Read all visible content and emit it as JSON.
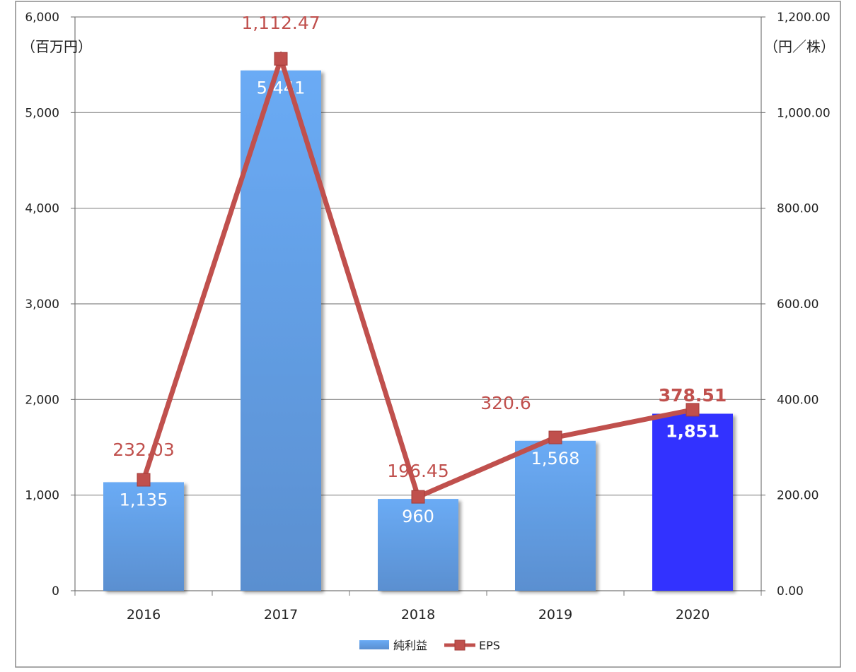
{
  "chart_data": {
    "type": "bar",
    "categories": [
      "2016",
      "2017",
      "2018",
      "2019",
      "2020"
    ],
    "series": [
      {
        "name": "純利益",
        "type": "bar",
        "axis": "left",
        "values": [
          1135,
          5441,
          960,
          1568,
          1851
        ],
        "labels": [
          "1,135",
          "5,441",
          "960",
          "1,568",
          "1,851"
        ],
        "colors": [
          "#6aabf5",
          "#6aabf5",
          "#6aabf5",
          "#6aabf5",
          "#3333ff"
        ]
      },
      {
        "name": "EPS",
        "type": "line",
        "axis": "right",
        "values": [
          232.03,
          1112.47,
          196.45,
          320.6,
          378.51
        ],
        "labels": [
          "232.03",
          "1,112.47",
          "196.45",
          "320.6",
          "378.51"
        ],
        "color": "#c0504d"
      }
    ],
    "y_left": {
      "unit": "（百万円）",
      "range": [
        0,
        6000
      ],
      "ticks": [
        "0",
        "1,000",
        "2,000",
        "3,000",
        "4,000",
        "5,000",
        "6,000"
      ]
    },
    "y_right": {
      "unit": "（円／株）",
      "range": [
        0,
        1200
      ],
      "ticks": [
        "0.00",
        "200.00",
        "400.00",
        "600.00",
        "800.00",
        "1,000.00",
        "1,200.00"
      ]
    },
    "highlight_index": 4,
    "grid": true,
    "legend_position": "bottom",
    "colors": {
      "bar_top": "#6aabf5",
      "bar_bottom": "#5a8fd0",
      "highlight_bar": "#3333ff",
      "line": "#c0504d",
      "gridline": "#888888"
    }
  }
}
